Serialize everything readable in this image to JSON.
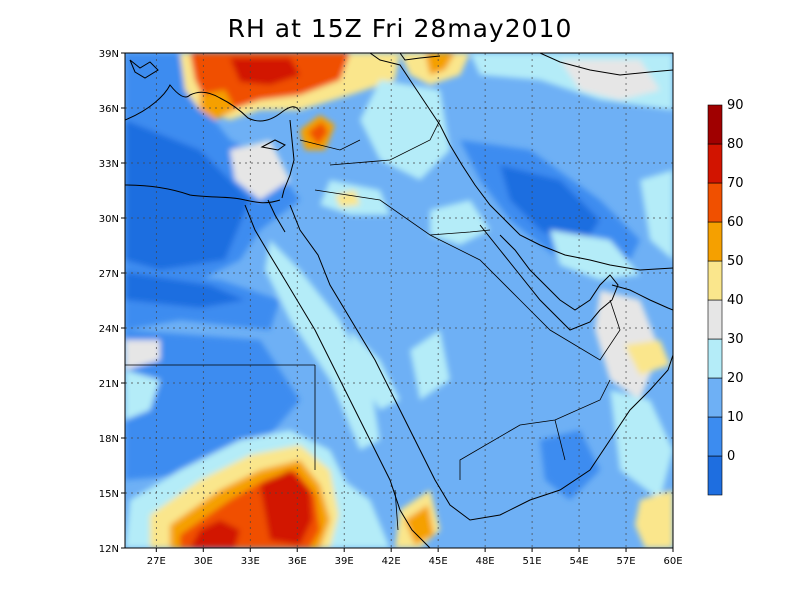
{
  "title": "RH at 15Z Fri 28may2010",
  "map": {
    "lat_ticks": [
      "12N",
      "15N",
      "18N",
      "21N",
      "24N",
      "27N",
      "30N",
      "33N",
      "36N",
      "39N"
    ],
    "lon_ticks": [
      "27E",
      "30E",
      "33E",
      "36E",
      "39E",
      "42E",
      "45E",
      "48E",
      "51E",
      "54E",
      "57E",
      "60E"
    ],
    "lat_range": [
      12,
      39
    ],
    "lon_range": [
      25,
      60
    ]
  },
  "colorbar": {
    "labels": [
      "0",
      "10",
      "20",
      "30",
      "40",
      "50",
      "60",
      "70",
      "80",
      "90"
    ],
    "colors": [
      "#1e6ee0",
      "#3c8cf0",
      "#6eb0f5",
      "#b4ecf8",
      "#e6e6e6",
      "#fae68c",
      "#f5a000",
      "#f05000",
      "#d21400",
      "#a00000"
    ]
  },
  "regions": {
    "ocean_blue": "#3c8cf0",
    "interior": "#6eb0f5",
    "highest_rh": "Ethiopia/Sudan highlands and Turkey coast"
  }
}
